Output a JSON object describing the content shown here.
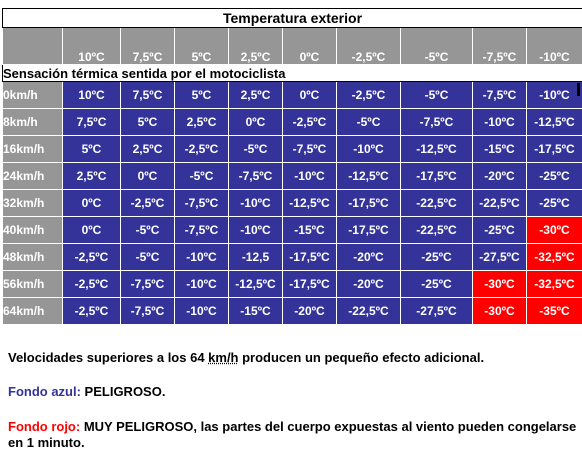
{
  "title": "Temperatura exterior",
  "header_temps": [
    "10ºC",
    "7,5ºC",
    "5ºC",
    "2,5ºC",
    "0ºC",
    "-2,5ºC",
    "-5ºC",
    "-7,5ºC",
    "-10ºC"
  ],
  "subtitle": "Sensación térmica sentida por el motociclista",
  "rows": [
    {
      "speed": "0km/h",
      "values": [
        "10ºC",
        "7,5ºC",
        "5ºC",
        "2,5ºC",
        "0ºC",
        "-2,5ºC",
        "-5ºC",
        "-7,5ºC",
        "-10ºC"
      ],
      "colors": [
        "blue",
        "blue",
        "blue",
        "blue",
        "blue",
        "blue",
        "blue",
        "blue",
        "blue"
      ]
    },
    {
      "speed": "8km/h",
      "values": [
        "7,5ºC",
        "5ºC",
        "2,5ºC",
        "0ºC",
        "-2,5ºC",
        "-5ºC",
        "-7,5ºC",
        "-10ºC",
        "-12,5ºC"
      ],
      "colors": [
        "blue",
        "blue",
        "blue",
        "blue",
        "blue",
        "blue",
        "blue",
        "blue",
        "blue"
      ]
    },
    {
      "speed": "16km/h",
      "values": [
        "5ºC",
        "2,5ºC",
        "-2,5ºC",
        "-5ºC",
        "-7,5ºC",
        "-10ºC",
        "-12,5ºC",
        "-15ºC",
        "-17,5ºC"
      ],
      "colors": [
        "blue",
        "blue",
        "blue",
        "blue",
        "blue",
        "blue",
        "blue",
        "blue",
        "blue"
      ]
    },
    {
      "speed": "24km/h",
      "values": [
        "2,5ºC",
        "0ºC",
        "-5ºC",
        "-7,5ºC",
        "-10ºC",
        "-12,5ºC",
        "-17,5ºC",
        "-20ºC",
        "-25ºC"
      ],
      "colors": [
        "blue",
        "blue",
        "blue",
        "blue",
        "blue",
        "blue",
        "blue",
        "blue",
        "blue"
      ]
    },
    {
      "speed": "32km/h",
      "values": [
        "0ºC",
        "-2,5ºC",
        "-7,5ºC",
        "-10ºC",
        "-12,5ºC",
        "-17,5ºC",
        "-22,5ºC",
        "-22,5ºC",
        "-25ºC"
      ],
      "colors": [
        "blue",
        "blue",
        "blue",
        "blue",
        "blue",
        "blue",
        "blue",
        "blue",
        "blue"
      ]
    },
    {
      "speed": "40km/h",
      "values": [
        "0ºC",
        "-5ºC",
        "-7,5ºC",
        "-10ºC",
        "-15ºC",
        "-17,5ºC",
        "-22,5ºC",
        "-25ºC",
        "-30ºC"
      ],
      "colors": [
        "blue",
        "blue",
        "blue",
        "blue",
        "blue",
        "blue",
        "blue",
        "blue",
        "red"
      ]
    },
    {
      "speed": "48km/h",
      "values": [
        "-2,5ºC",
        "-5ºC",
        "-10ºC",
        "-12,5",
        "-17,5ºC",
        "-20ºC",
        "-25ºC",
        "-27,5ºC",
        "-32,5ºC"
      ],
      "colors": [
        "blue",
        "blue",
        "blue",
        "blue",
        "blue",
        "blue",
        "blue",
        "blue",
        "red"
      ]
    },
    {
      "speed": "56km/h",
      "values": [
        "-2,5ºC",
        "-7,5ºC",
        "-10ºC",
        "-12,5ºC",
        "-17,5ºC",
        "-20ºC",
        "-25ºC",
        "-30ºC",
        "-32,5ºC"
      ],
      "colors": [
        "blue",
        "blue",
        "blue",
        "blue",
        "blue",
        "blue",
        "blue",
        "red",
        "red"
      ]
    },
    {
      "speed": "64km/h",
      "values": [
        "-2,5ºC",
        "-7,5ºC",
        "-10ºC",
        "-15ºC",
        "-20ºC",
        "-22,5ºC",
        "-27,5ºC",
        "-30ºC",
        "-35ºC"
      ],
      "colors": [
        "blue",
        "blue",
        "blue",
        "blue",
        "blue",
        "blue",
        "blue",
        "red",
        "red"
      ]
    }
  ],
  "notes": {
    "line1_pre": "Velocidades superiores a los 64 ",
    "line1_unit": "km/h",
    "line1_post": " producen un pequeño efecto adicional.",
    "blue_label": "Fondo azul:",
    "blue_text": " PELIGROSO.",
    "red_label": "Fondo rojo:",
    "red_text": " MUY PELIGROSO, las partes del cuerpo expuestas al viento pueden congelarse en 1 minuto."
  },
  "colors": {
    "blue": "#333399",
    "red": "#ff0000",
    "gray": "#969696"
  }
}
